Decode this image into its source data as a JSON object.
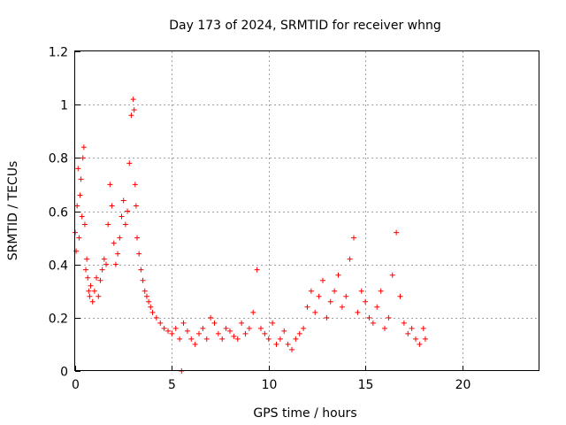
{
  "chart_data": {
    "type": "scatter",
    "title": "Day 173 of 2024, SRMTID for receiver whng",
    "xlabel": "GPS time / hours",
    "ylabel": "SRMTID / TECUs",
    "xlim": [
      0,
      24
    ],
    "ylim": [
      0,
      1.2
    ],
    "x_ticks": [
      0,
      5,
      10,
      15,
      20
    ],
    "x_tick_labels": [
      "0",
      "5",
      "10",
      "15",
      "20"
    ],
    "y_ticks": [
      0,
      0.2,
      0.4,
      0.6,
      0.8,
      1.0,
      1.2
    ],
    "y_tick_labels": [
      "0",
      "0.2",
      "0.4",
      "0.6",
      "0.8",
      "1",
      "1.2"
    ],
    "grid": true,
    "marker": "plus",
    "color": "#ff0000",
    "data_range_hours": [
      0,
      18.1
    ],
    "series": [
      {
        "name": "SRMTID",
        "x": [
          0.0,
          0.05,
          0.1,
          0.15,
          0.2,
          0.25,
          0.3,
          0.35,
          0.4,
          0.45,
          0.5,
          0.55,
          0.6,
          0.65,
          0.7,
          0.75,
          0.8,
          0.9,
          1.0,
          1.1,
          1.2,
          1.3,
          1.4,
          1.5,
          1.6,
          1.7,
          1.8,
          1.9,
          2.0,
          2.1,
          2.2,
          2.3,
          2.4,
          2.5,
          2.6,
          2.7,
          2.8,
          2.9,
          3.0,
          3.05,
          3.1,
          3.15,
          3.2,
          3.3,
          3.4,
          3.5,
          3.6,
          3.7,
          3.8,
          3.9,
          4.0,
          4.2,
          4.4,
          4.6,
          4.8,
          5.0,
          5.2,
          5.4,
          5.5,
          5.6,
          5.8,
          6.0,
          6.2,
          6.4,
          6.6,
          6.8,
          7.0,
          7.2,
          7.4,
          7.6,
          7.8,
          8.0,
          8.2,
          8.4,
          8.6,
          8.8,
          9.0,
          9.2,
          9.4,
          9.6,
          9.8,
          10.0,
          10.2,
          10.4,
          10.6,
          10.8,
          11.0,
          11.2,
          11.4,
          11.6,
          11.8,
          12.0,
          12.2,
          12.4,
          12.6,
          12.8,
          13.0,
          13.2,
          13.4,
          13.6,
          13.8,
          14.0,
          14.2,
          14.4,
          14.6,
          14.8,
          15.0,
          15.2,
          15.4,
          15.6,
          15.8,
          16.0,
          16.2,
          16.4,
          16.6,
          16.8,
          17.0,
          17.2,
          17.4,
          17.6,
          17.8,
          18.0,
          18.1
        ],
        "y": [
          0.52,
          0.45,
          0.62,
          0.76,
          0.5,
          0.66,
          0.72,
          0.58,
          0.8,
          0.84,
          0.55,
          0.38,
          0.42,
          0.35,
          0.3,
          0.28,
          0.32,
          0.26,
          0.3,
          0.35,
          0.28,
          0.34,
          0.38,
          0.42,
          0.4,
          0.55,
          0.7,
          0.62,
          0.48,
          0.4,
          0.44,
          0.5,
          0.58,
          0.64,
          0.55,
          0.6,
          0.78,
          0.96,
          1.02,
          0.98,
          0.7,
          0.62,
          0.5,
          0.44,
          0.38,
          0.34,
          0.3,
          0.28,
          0.26,
          0.24,
          0.22,
          0.2,
          0.18,
          0.16,
          0.15,
          0.14,
          0.16,
          0.12,
          0.0,
          0.18,
          0.15,
          0.12,
          0.1,
          0.14,
          0.16,
          0.12,
          0.2,
          0.18,
          0.14,
          0.12,
          0.16,
          0.15,
          0.13,
          0.12,
          0.18,
          0.14,
          0.16,
          0.22,
          0.38,
          0.16,
          0.14,
          0.12,
          0.18,
          0.1,
          0.12,
          0.15,
          0.1,
          0.08,
          0.12,
          0.14,
          0.16,
          0.24,
          0.3,
          0.22,
          0.28,
          0.34,
          0.2,
          0.26,
          0.3,
          0.36,
          0.24,
          0.28,
          0.42,
          0.5,
          0.22,
          0.3,
          0.26,
          0.2,
          0.18,
          0.24,
          0.3,
          0.16,
          0.2,
          0.36,
          0.52,
          0.28,
          0.18,
          0.14,
          0.16,
          0.12,
          0.1,
          0.16,
          0.12
        ]
      }
    ]
  }
}
